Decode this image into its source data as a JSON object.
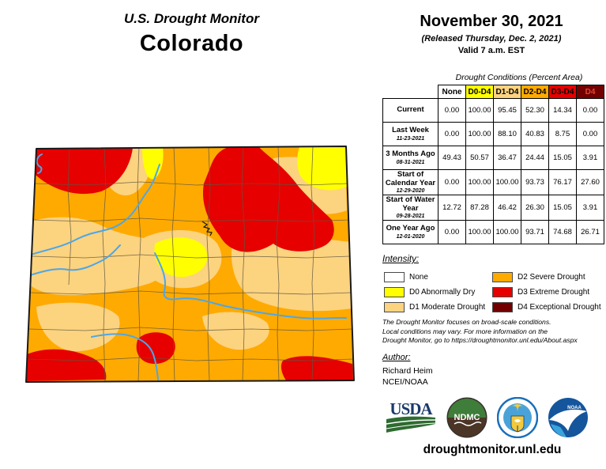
{
  "header": {
    "title": "U.S. Drought Monitor",
    "state": "Colorado"
  },
  "date_block": {
    "date": "November 30, 2021",
    "released": "(Released Thursday, Dec. 2, 2021)",
    "valid": "Valid 7 a.m. EST"
  },
  "table": {
    "title": "Drought Conditions (Percent Area)",
    "columns": [
      "None",
      "D0-D4",
      "D1-D4",
      "D2-D4",
      "D3-D4",
      "D4"
    ],
    "column_colors": [
      "#FFFFFF",
      "#FFFF00",
      "#FCD37F",
      "#FFAA00",
      "#E60000",
      "#730000"
    ],
    "column_text_colors": [
      "#000000",
      "#000000",
      "#000000",
      "#000000",
      "#000000",
      "#E0482F"
    ],
    "rows": [
      {
        "label": "Current",
        "date": "",
        "values": [
          "0.00",
          "100.00",
          "95.45",
          "52.30",
          "14.34",
          "0.00"
        ]
      },
      {
        "label": "Last Week",
        "date": "11-23-2021",
        "values": [
          "0.00",
          "100.00",
          "88.10",
          "40.83",
          "8.75",
          "0.00"
        ]
      },
      {
        "label": "3 Months Ago",
        "date": "08-31-2021",
        "values": [
          "49.43",
          "50.57",
          "36.47",
          "24.44",
          "15.05",
          "3.91"
        ]
      },
      {
        "label": "Start of Calendar Year",
        "date": "12-29-2020",
        "values": [
          "0.00",
          "100.00",
          "100.00",
          "93.73",
          "76.17",
          "27.60"
        ]
      },
      {
        "label": "Start of Water Year",
        "date": "09-28-2021",
        "values": [
          "12.72",
          "87.28",
          "46.42",
          "26.30",
          "15.05",
          "3.91"
        ]
      },
      {
        "label": "One Year Ago",
        "date": "12-01-2020",
        "values": [
          "0.00",
          "100.00",
          "100.00",
          "93.71",
          "74.68",
          "26.71"
        ]
      }
    ]
  },
  "legend": {
    "title": "Intensity:",
    "items": [
      {
        "label": "None",
        "color": "#FFFFFF"
      },
      {
        "label": "D0 Abnormally Dry",
        "color": "#FFFF00"
      },
      {
        "label": "D1 Moderate Drought",
        "color": "#FCD37F"
      },
      {
        "label": "D2 Severe Drought",
        "color": "#FFAA00"
      },
      {
        "label": "D3 Extreme Drought",
        "color": "#E60000"
      },
      {
        "label": "D4 Exceptional Drought",
        "color": "#730000"
      }
    ]
  },
  "disclaimer": {
    "lines": [
      "The Drought Monitor focuses on broad-scale conditions.",
      "Local conditions may vary. For more information on the",
      "Drought Monitor, go to https://droughtmonitor.unl.edu/About.aspx"
    ]
  },
  "author": {
    "title": "Author:",
    "name": "Richard Heim",
    "org": "NCEI/NOAA"
  },
  "logos": {
    "usda": "USDA",
    "ndmc": "NDMC",
    "noaa": "NOAA"
  },
  "footer": {
    "url": "droughtmonitor.unl.edu"
  },
  "map": {
    "state_name": "Colorado",
    "colors": {
      "none": "#FFFFFF",
      "d0": "#FFFF00",
      "d1": "#FCD37F",
      "d2": "#FFAA00",
      "d3": "#E60000",
      "d4": "#730000",
      "river": "#4DA6E8",
      "county_line": "#5F5744",
      "border": "#1A1A1A"
    }
  }
}
